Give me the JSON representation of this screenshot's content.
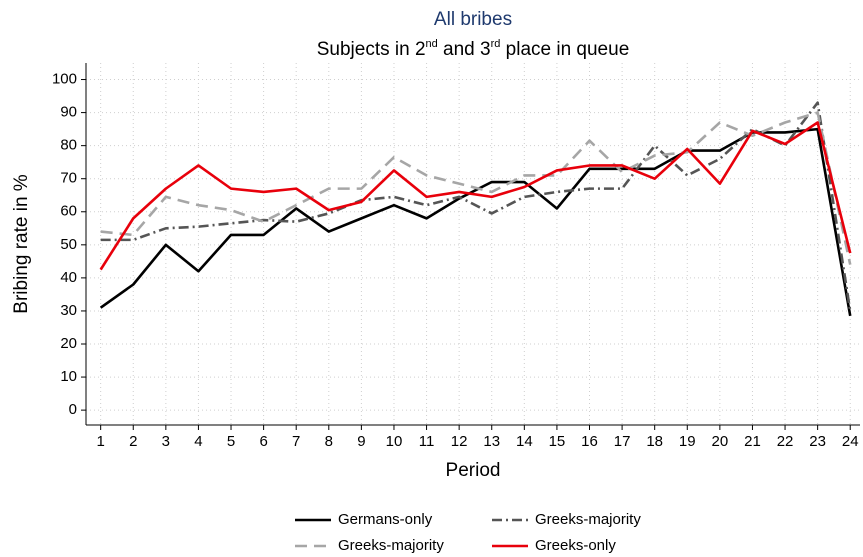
{
  "chart_data": {
    "type": "line",
    "title": "All bribes",
    "subtitle_parts": [
      {
        "text": "Subjects in 2"
      },
      {
        "text": "nd",
        "sup": true
      },
      {
        "text": " and 3"
      },
      {
        "text": "rd",
        "sup": true
      },
      {
        "text": " place in queue"
      }
    ],
    "xlabel": "Period",
    "ylabel": "Bribing rate in %",
    "x": [
      1,
      2,
      3,
      4,
      5,
      6,
      7,
      8,
      9,
      10,
      11,
      12,
      13,
      14,
      15,
      16,
      17,
      18,
      19,
      20,
      21,
      22,
      23,
      24
    ],
    "xlim": [
      0.55,
      24.3
    ],
    "xticks": [
      1,
      2,
      3,
      4,
      5,
      6,
      7,
      8,
      9,
      10,
      11,
      12,
      13,
      14,
      15,
      16,
      17,
      18,
      19,
      20,
      21,
      22,
      23,
      24
    ],
    "ylim": [
      -4.5,
      105
    ],
    "yticks": [
      0,
      10,
      20,
      30,
      40,
      50,
      60,
      70,
      80,
      90,
      100
    ],
    "grid": true,
    "legend": "bottom",
    "series": [
      {
        "name": "Germans-only",
        "color": "#000000",
        "dash": "solid",
        "values": [
          31,
          38,
          50,
          42,
          53,
          53,
          61,
          54,
          58,
          62,
          58,
          64,
          69,
          69,
          61,
          73,
          73,
          73,
          78.5,
          78.5,
          84,
          84,
          85,
          28.5
        ]
      },
      {
        "name": "Greeks-majority",
        "color": "#555555",
        "dash": "dashdot",
        "values": [
          51.5,
          51.5,
          55,
          55.5,
          56.5,
          57.5,
          57,
          59.5,
          63.5,
          64.5,
          62,
          64.5,
          59.5,
          64.5,
          66,
          67,
          67,
          80,
          71,
          76,
          85,
          80,
          93,
          30
        ]
      },
      {
        "name": "Greeks-majority",
        "color": "#a6a6a6",
        "dash": "dashed",
        "values": [
          54,
          53,
          64.5,
          62,
          60.5,
          57,
          62,
          67,
          67,
          76.5,
          71,
          68.5,
          66,
          71,
          71,
          81.5,
          72,
          77,
          78,
          87,
          83,
          87,
          90,
          44
        ]
      },
      {
        "name": "Greeks-only",
        "color": "#e8000b",
        "dash": "solid",
        "values": [
          42.5,
          58,
          67,
          74,
          67,
          66,
          67,
          60.5,
          63,
          72.5,
          64.5,
          66,
          64.5,
          67.5,
          72.5,
          74,
          74,
          70,
          79,
          68.5,
          84.5,
          80.5,
          87,
          47.5
        ]
      }
    ]
  }
}
